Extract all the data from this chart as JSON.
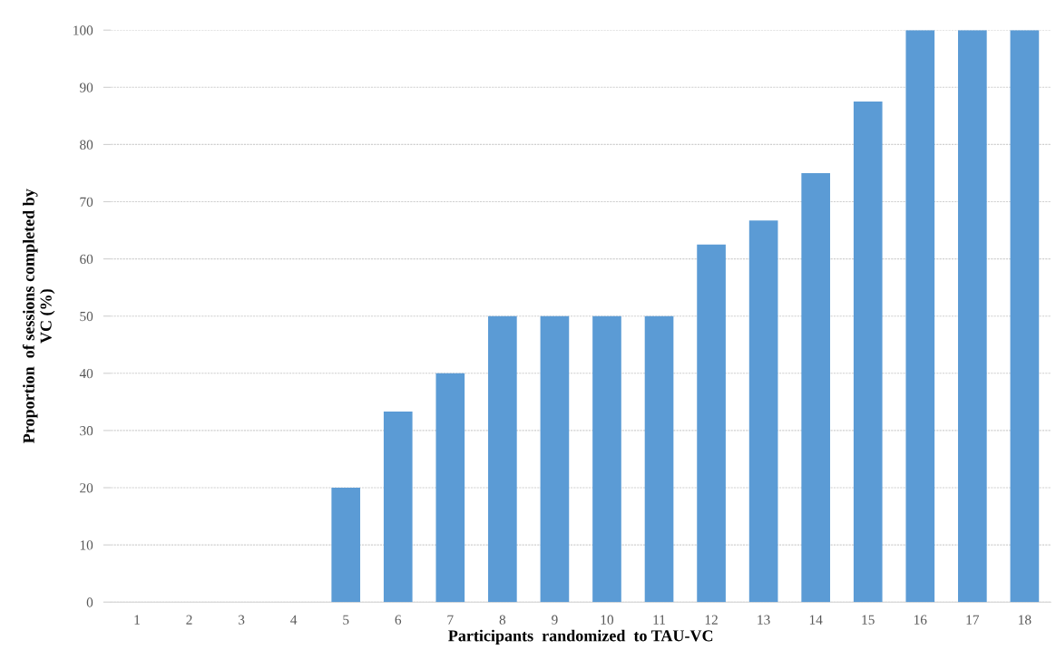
{
  "chart_data": {
    "type": "bar",
    "xlabel": "Participants  randomized  to TAU-VC",
    "ylabel": "Proportion  of sessions completed by\nVC (%)",
    "categories": [
      "1",
      "2",
      "3",
      "4",
      "5",
      "6",
      "7",
      "8",
      "9",
      "10",
      "11",
      "12",
      "13",
      "14",
      "15",
      "16",
      "17",
      "18"
    ],
    "values": [
      0,
      0,
      0,
      0,
      20,
      33.3,
      40,
      50,
      50,
      50,
      50,
      62.5,
      66.7,
      75,
      87.5,
      100,
      100,
      100
    ],
    "color": "#5b9bd5",
    "ylim": [
      0,
      100
    ],
    "yticks": [
      0,
      10,
      20,
      30,
      40,
      50,
      60,
      70,
      80,
      90,
      100
    ],
    "grid": "y"
  }
}
